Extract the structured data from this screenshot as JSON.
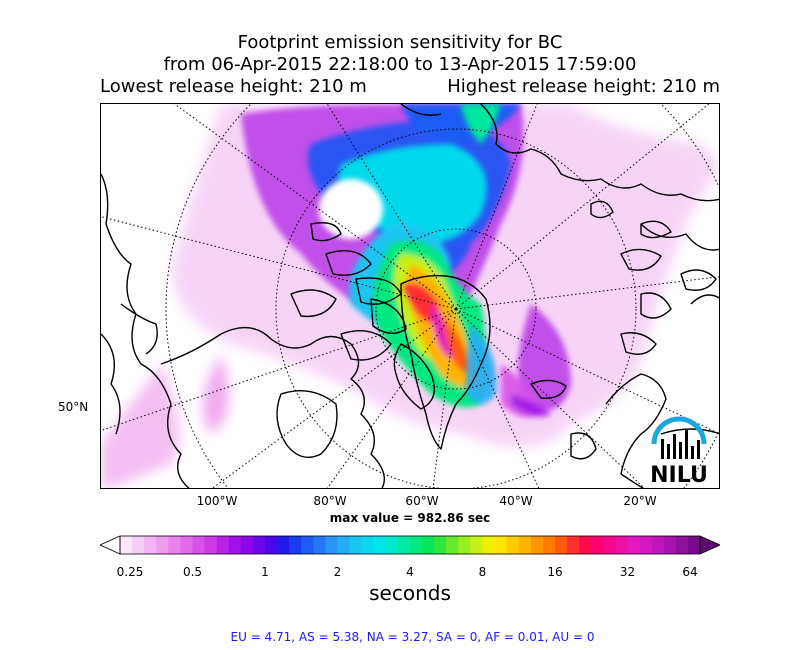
{
  "title": {
    "line1": "Footprint emission sensitivity for BC",
    "line2": "from 06-Apr-2015 22:18:00 to 13-Apr-2015 17:59:00",
    "lowest": "Lowest release height: 210 m",
    "highest": "Highest release height: 210 m"
  },
  "map": {
    "lon_labels": [
      "100°W",
      "80°W",
      "60°W",
      "40°W",
      "20°W"
    ],
    "lat_labels": [
      "50°N"
    ],
    "max_value": "max value = 982.86 sec",
    "logo": {
      "text": "NILU",
      "icon": "nilu-logo-icon",
      "color": "#1aa7e0"
    }
  },
  "colorbar": {
    "ticks": [
      "0.25",
      "0.5",
      "1",
      "2",
      "4",
      "8",
      "16",
      "32",
      "64"
    ],
    "label": "seconds",
    "colors": [
      "#fbe6fb",
      "#f6cdf6",
      "#f2b4f2",
      "#ee9cee",
      "#e883ec",
      "#e26ae9",
      "#d851e8",
      "#cc3ae6",
      "#b923e6",
      "#a210e8",
      "#8a08ea",
      "#6c06ea",
      "#4808ea",
      "#2418ec",
      "#1a3cf0",
      "#1e5cf4",
      "#2478f6",
      "#2a94f8",
      "#26acf6",
      "#1cc4f2",
      "#0ad8ee",
      "#00e6e6",
      "#00e8cc",
      "#00e8a8",
      "#00e880",
      "#04e45c",
      "#2ee63c",
      "#66ea2c",
      "#9aee20",
      "#c8f018",
      "#eef000",
      "#ffe400",
      "#ffcc00",
      "#ffb400",
      "#ff9800",
      "#ff7c00",
      "#ff5a10",
      "#ff2e30",
      "#ff0a50",
      "#ff0070",
      "#f4088c",
      "#ec10a4",
      "#e418bc",
      "#d418c4",
      "#c016c0",
      "#a812b0",
      "#90109e",
      "#760a8a"
    ]
  },
  "region_stats": "EU = 4.71,  AS = 5.38,  NA = 3.27,  SA = 0,  AF = 0.01,  AU = 0"
}
